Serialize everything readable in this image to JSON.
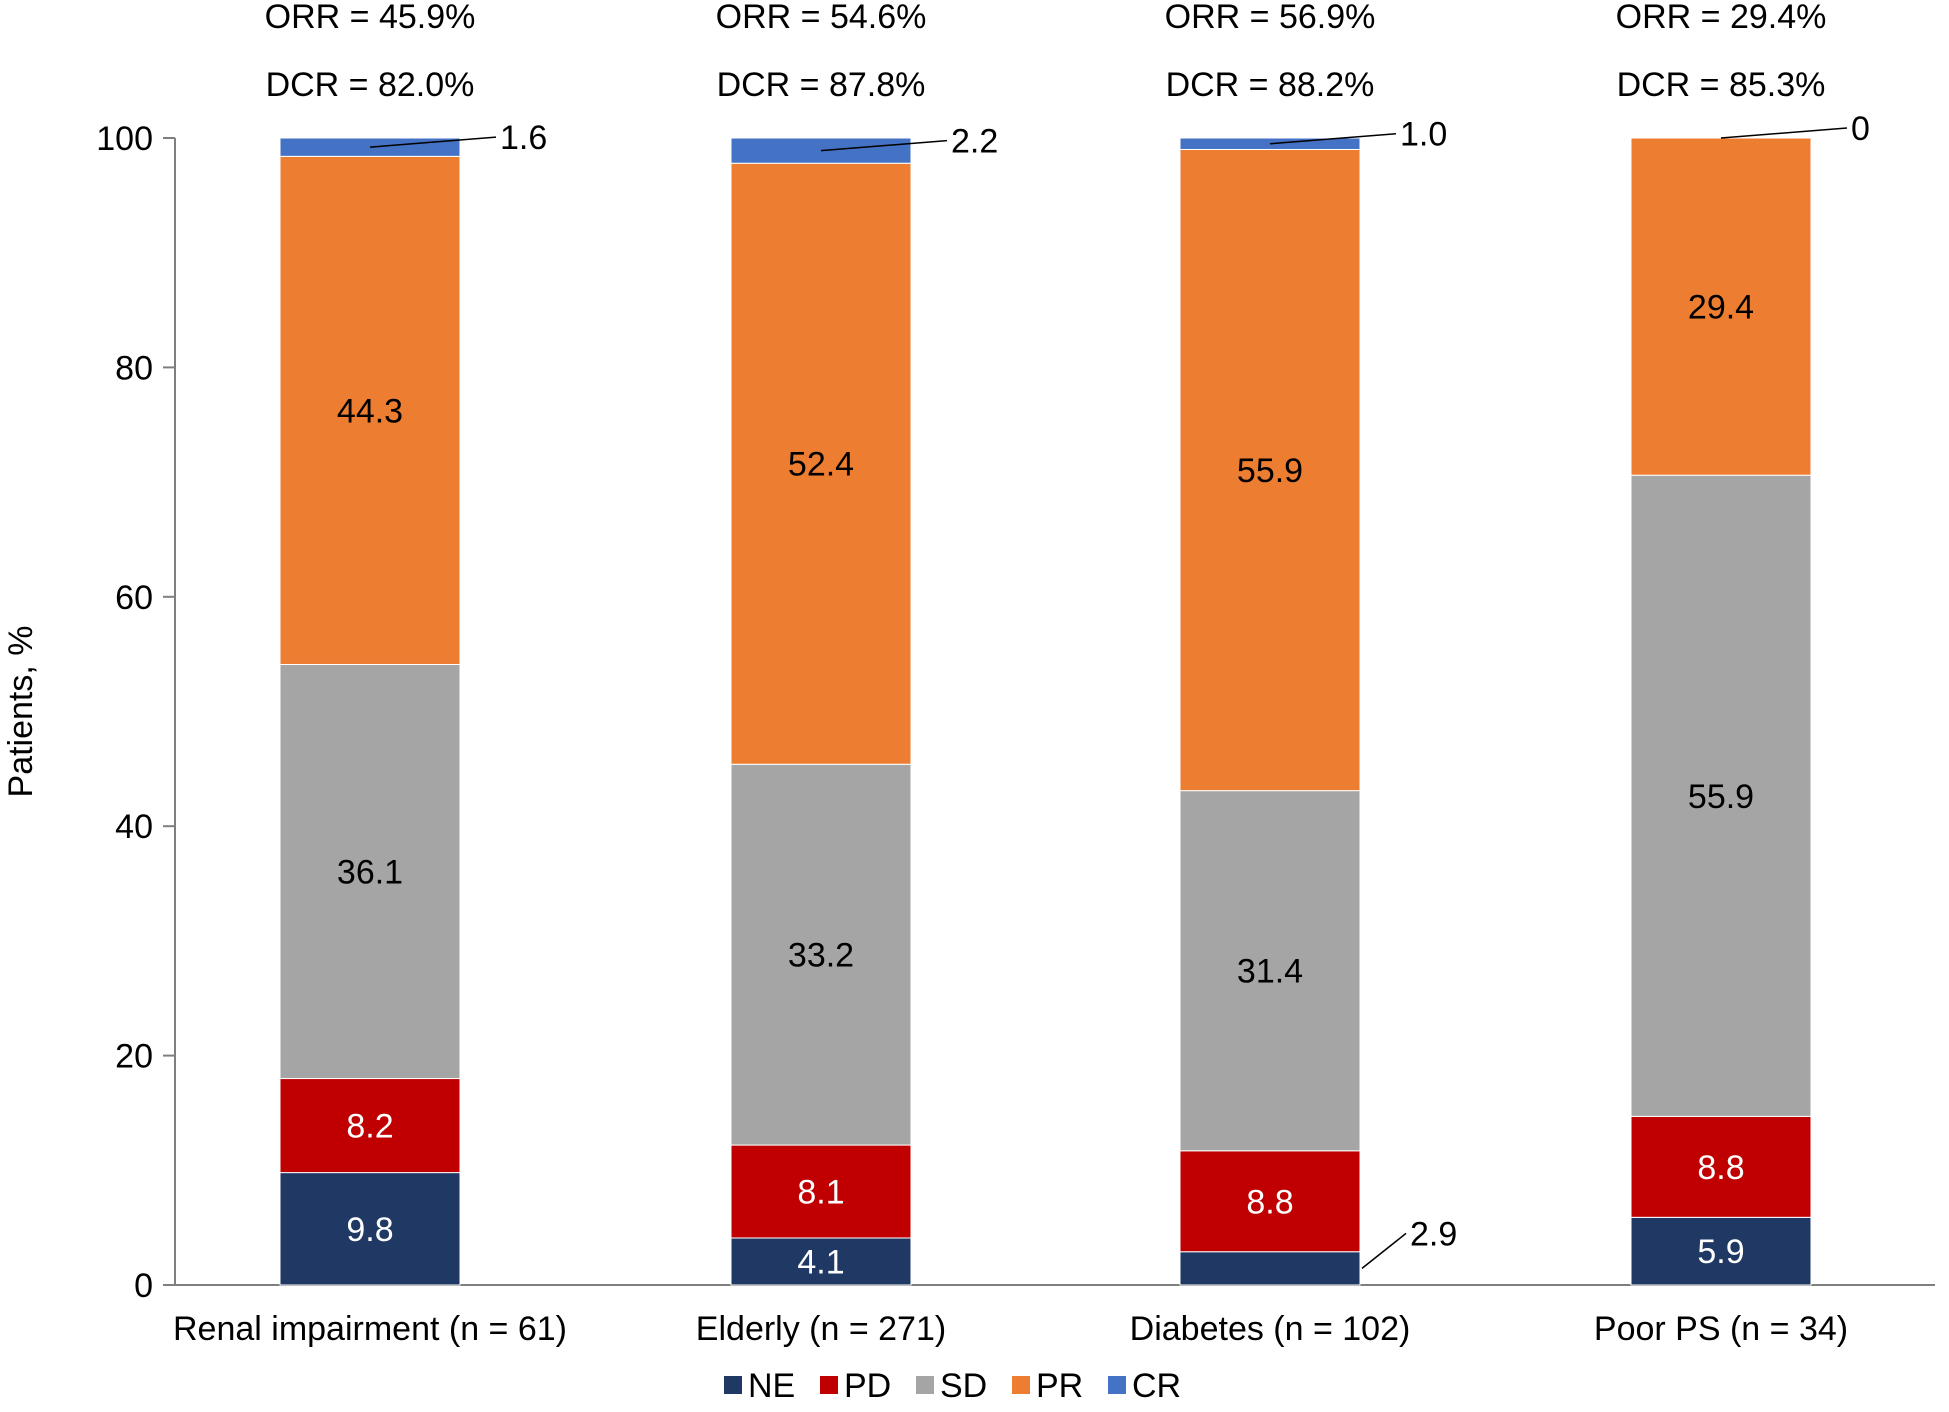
{
  "chart_data": {
    "type": "bar",
    "stacked": true,
    "ylabel": "Patients, %",
    "ylim": [
      0,
      100
    ],
    "yticks": [
      0,
      20,
      40,
      60,
      80,
      100
    ],
    "categories": [
      "Renal impairment (n = 61)",
      "Elderly (n = 271)",
      "Diabetes (n = 102)",
      "Poor PS (n = 34)"
    ],
    "series": [
      {
        "name": "NE",
        "color": "#1F3864",
        "values": [
          9.8,
          4.1,
          2.9,
          5.9
        ]
      },
      {
        "name": "PD",
        "color": "#C00000",
        "values": [
          8.2,
          8.1,
          8.8,
          8.8
        ]
      },
      {
        "name": "SD",
        "color": "#A5A5A5",
        "values": [
          36.1,
          33.2,
          31.4,
          55.9
        ]
      },
      {
        "name": "PR",
        "color": "#ED7D31",
        "values": [
          44.3,
          52.4,
          55.9,
          29.4
        ]
      },
      {
        "name": "CR",
        "color": "#4472C4",
        "values": [
          1.6,
          2.2,
          1.0,
          0
        ]
      }
    ],
    "value_labels": {
      "NE": [
        "9.8",
        "4.1",
        "2.9",
        "5.9"
      ],
      "PD": [
        "8.2",
        "8.1",
        "8.8",
        "8.8"
      ],
      "SD": [
        "36.1",
        "33.2",
        "31.4",
        "55.9"
      ],
      "PR": [
        "44.3",
        "52.4",
        "55.9",
        "29.4"
      ],
      "CR": [
        "1.6",
        "2.2",
        "1.0",
        "0"
      ]
    },
    "orr": [
      "ORR = 45.9%",
      "ORR = 54.6%",
      "ORR = 56.9%",
      "ORR = 29.4%"
    ],
    "dcr": [
      "DCR = 82.0%",
      "DCR = 87.8%",
      "DCR = 88.2%",
      "DCR = 85.3%"
    ],
    "legend": [
      "NE",
      "PD",
      "SD",
      "PR",
      "CR"
    ],
    "legend_position": "bottom-center"
  }
}
